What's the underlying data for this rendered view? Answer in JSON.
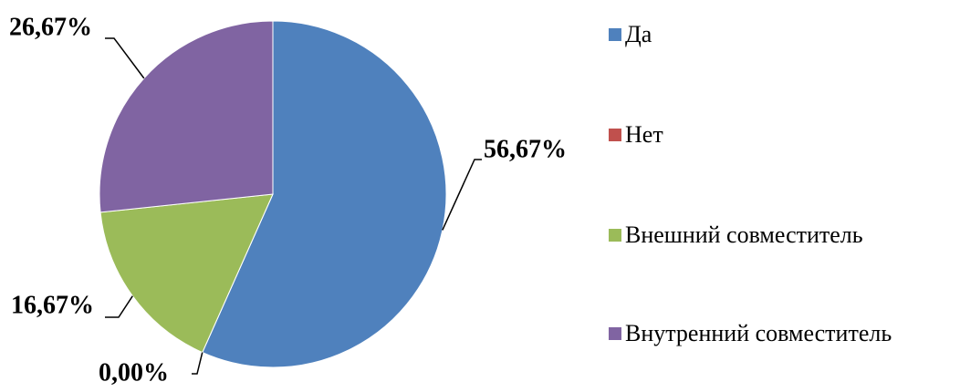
{
  "chart_data": {
    "type": "pie",
    "categories": [
      "Да",
      "Нет",
      "Внешний совместитель",
      "Внутренний совместитель"
    ],
    "values": [
      56.67,
      0,
      16.67,
      26.67
    ],
    "value_labels": [
      "56,67%",
      "0,00%",
      "16,67%",
      "26,67%"
    ],
    "colors": [
      "#4f81bd",
      "#c0504d",
      "#9bbb59",
      "#8064a2"
    ],
    "legend": "right"
  }
}
